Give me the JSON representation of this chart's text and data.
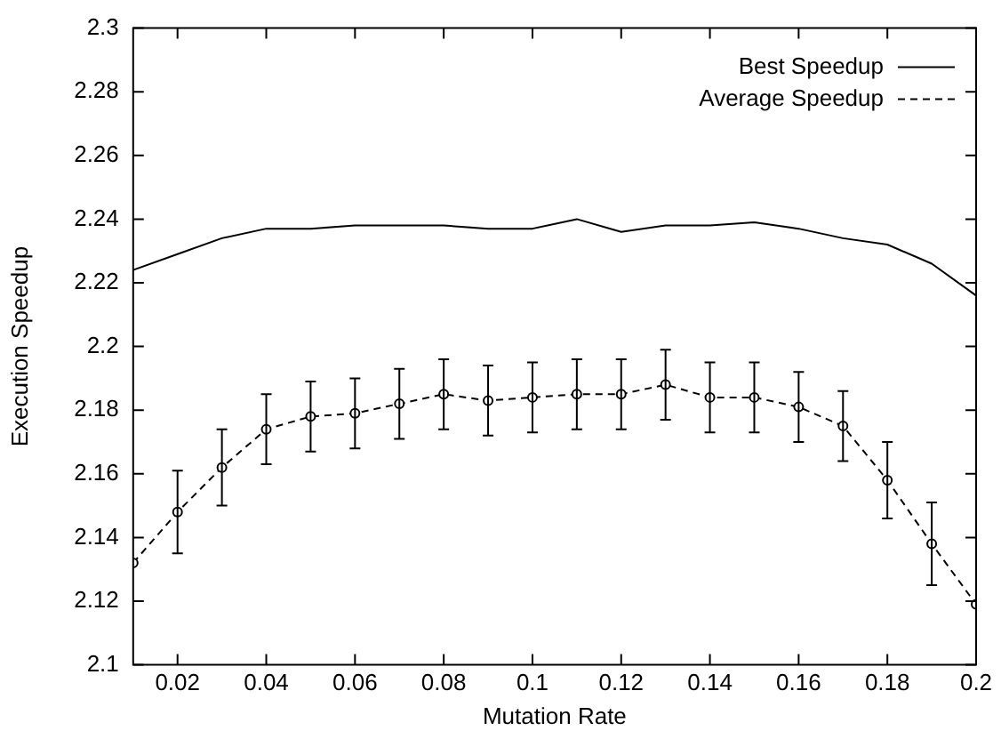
{
  "chart_data": {
    "type": "line",
    "xlabel": "Mutation Rate",
    "ylabel": "Execution Speedup",
    "x": [
      0.01,
      0.02,
      0.03,
      0.04,
      0.05,
      0.06,
      0.07,
      0.08,
      0.09,
      0.1,
      0.11,
      0.12,
      0.13,
      0.14,
      0.15,
      0.16,
      0.17,
      0.18,
      0.19,
      0.2
    ],
    "series": [
      {
        "name": "Best Speedup",
        "color": "#000000",
        "line_style": "solid",
        "marker": "none",
        "values": [
          2.224,
          2.229,
          2.234,
          2.237,
          2.237,
          2.238,
          2.238,
          2.238,
          2.237,
          2.237,
          2.24,
          2.236,
          2.238,
          2.238,
          2.239,
          2.237,
          2.234,
          2.232,
          2.226,
          2.216
        ]
      },
      {
        "name": "Average Speedup",
        "color": "#000000",
        "line_style": "dashed",
        "marker": "circle",
        "values": [
          2.132,
          2.148,
          2.162,
          2.174,
          2.178,
          2.179,
          2.182,
          2.185,
          2.183,
          2.184,
          2.185,
          2.185,
          2.188,
          2.184,
          2.184,
          2.181,
          2.175,
          2.158,
          2.138,
          2.119
        ],
        "errors": [
          null,
          0.013,
          0.012,
          0.011,
          0.011,
          0.011,
          0.011,
          0.011,
          0.011,
          0.011,
          0.011,
          0.011,
          0.011,
          0.011,
          0.011,
          0.011,
          0.011,
          0.012,
          0.013,
          null
        ]
      }
    ],
    "xlim": [
      0.01,
      0.2
    ],
    "xticks": [
      0.02,
      0.04,
      0.06,
      0.08,
      0.1,
      0.12,
      0.14,
      0.16,
      0.18,
      0.2
    ],
    "ylim": [
      2.1,
      2.3
    ],
    "yticks": [
      2.1,
      2.12,
      2.14,
      2.16,
      2.18,
      2.2,
      2.22,
      2.24,
      2.26,
      2.28,
      2.3
    ],
    "grid": false,
    "legend": "top right"
  }
}
